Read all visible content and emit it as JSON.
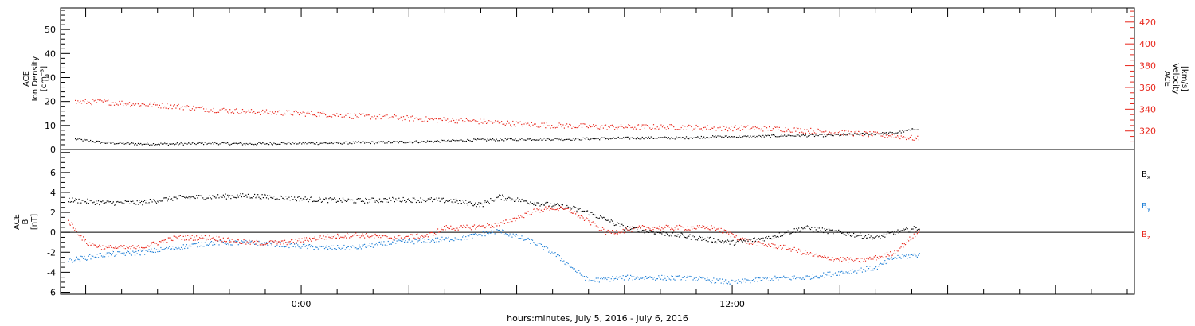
{
  "chart_data": [
    {
      "type": "scatter",
      "panel": "top",
      "ylabel": [
        "ACE",
        "Ion Density",
        "[cm⁻³]"
      ],
      "ylabel_right": [
        "ACE",
        "Velocity",
        "[km/s]"
      ],
      "ylim": [
        0,
        59
      ],
      "ylim_right": [
        303,
        433
      ],
      "yticks": [
        "0",
        "10",
        "20",
        "30",
        "40",
        "50"
      ],
      "yticks_right": [
        "320",
        "340",
        "360",
        "380",
        "400",
        "420"
      ],
      "grid": false,
      "series": [
        {
          "axis": "left",
          "color": "#000000",
          "x": [
            -6.3,
            -5.5,
            -4.5,
            -3.5,
            -2.5,
            -1.5,
            -0.5,
            0.5,
            1.5,
            2.5,
            3.5,
            4.5,
            5.5,
            6.5,
            7.5,
            8.5,
            9.5,
            10.5,
            11.5,
            12.5,
            13.5,
            14.5,
            15.5,
            16.5,
            17.2
          ],
          "values": [
            4.5,
            3.0,
            2.5,
            2.5,
            2.8,
            2.5,
            2.8,
            2.8,
            3.0,
            3.2,
            3.5,
            4.0,
            4.3,
            4.5,
            4.5,
            4.8,
            5.0,
            5.0,
            5.5,
            5.5,
            6.0,
            6.0,
            6.5,
            7.0,
            9.0
          ]
        },
        {
          "axis": "right",
          "color": "#e8261b",
          "x": [
            -6.3,
            -5.5,
            -4.5,
            -3.5,
            -2.5,
            -1.5,
            -0.5,
            0.5,
            1.5,
            2.5,
            3.5,
            4.5,
            5.5,
            6.5,
            7.5,
            8.5,
            9.5,
            10.5,
            11.5,
            12.5,
            13.5,
            14.5,
            15.5,
            16.5,
            17.2
          ],
          "values": [
            347,
            347,
            345,
            343,
            340,
            338,
            337,
            336,
            334,
            333,
            331,
            330,
            328,
            326,
            325,
            324,
            324,
            324,
            323,
            323,
            322,
            320,
            318,
            316,
            313
          ]
        }
      ]
    },
    {
      "type": "scatter",
      "panel": "bottom",
      "ylabel": [
        "ACE",
        "B",
        "[nT]"
      ],
      "ylim": [
        -6.2,
        8.3
      ],
      "yticks": [
        "-6",
        "-4",
        "-2",
        "0",
        "2",
        "4",
        "6"
      ],
      "zero_line": true,
      "grid": false,
      "xlabel": "hours:minutes, July  5, 2016 - July  6, 2016",
      "xlim": [
        -6.7,
        23.2
      ],
      "xticks": [
        {
          "x": 0,
          "label": "0:00"
        },
        {
          "x": 12,
          "label": "12:00"
        }
      ],
      "series": [
        {
          "name": "Bx",
          "color": "#000000",
          "x": [
            -6.5,
            -5.5,
            -4.5,
            -3.5,
            -2.5,
            -1.5,
            -0.5,
            0.5,
            1.5,
            2.5,
            3.5,
            4.2,
            5.0,
            5.5,
            6.5,
            7.5,
            8.0,
            9.0,
            10.0,
            11.0,
            12.0,
            13.0,
            14.0,
            15.0,
            16.0,
            16.5,
            17.2
          ],
          "values": [
            3.3,
            3.0,
            3.0,
            3.5,
            3.6,
            3.7,
            3.5,
            3.3,
            3.2,
            3.3,
            3.3,
            3.2,
            2.8,
            3.6,
            3.0,
            2.5,
            2.0,
            0.5,
            0.0,
            -0.5,
            -1.0,
            -0.5,
            0.5,
            0.0,
            -0.5,
            0.0,
            0.5
          ]
        },
        {
          "name": "By",
          "color": "#1f7fd6",
          "x": [
            -6.5,
            -5.5,
            -4.5,
            -3.5,
            -2.5,
            -1.5,
            -0.5,
            0.5,
            1.5,
            2.5,
            3.5,
            4.5,
            5.5,
            6.5,
            7.0,
            8.0,
            9.0,
            10.0,
            11.0,
            12.0,
            13.0,
            14.0,
            15.0,
            16.0,
            16.5,
            17.2
          ],
          "values": [
            -2.8,
            -2.2,
            -2.0,
            -1.5,
            -1.0,
            -1.0,
            -1.2,
            -1.5,
            -1.5,
            -1.0,
            -0.8,
            -0.5,
            0.2,
            -1.0,
            -2.0,
            -4.8,
            -4.5,
            -4.5,
            -4.6,
            -5.0,
            -4.6,
            -4.5,
            -4.0,
            -3.5,
            -2.5,
            -2.2
          ]
        },
        {
          "name": "Bz",
          "color": "#e8261b",
          "x": [
            -6.5,
            -6.0,
            -5.5,
            -4.5,
            -3.5,
            -2.5,
            -1.5,
            -0.5,
            0.5,
            1.5,
            2.5,
            3.5,
            4.0,
            4.5,
            5.5,
            6.5,
            7.0,
            7.5,
            8.5,
            9.5,
            10.5,
            11.5,
            12.5,
            13.5,
            14.5,
            15.5,
            16.0,
            16.5,
            17.2
          ],
          "values": [
            1.2,
            -1.0,
            -1.5,
            -1.5,
            -0.5,
            -0.5,
            -1.0,
            -1.0,
            -0.5,
            -0.2,
            -0.5,
            -0.3,
            0.5,
            0.5,
            0.8,
            2.2,
            2.5,
            2.2,
            0.0,
            0.5,
            0.5,
            0.5,
            -1.0,
            -1.5,
            -2.5,
            -2.8,
            -2.5,
            -2.0,
            0.2
          ]
        }
      ]
    }
  ]
}
